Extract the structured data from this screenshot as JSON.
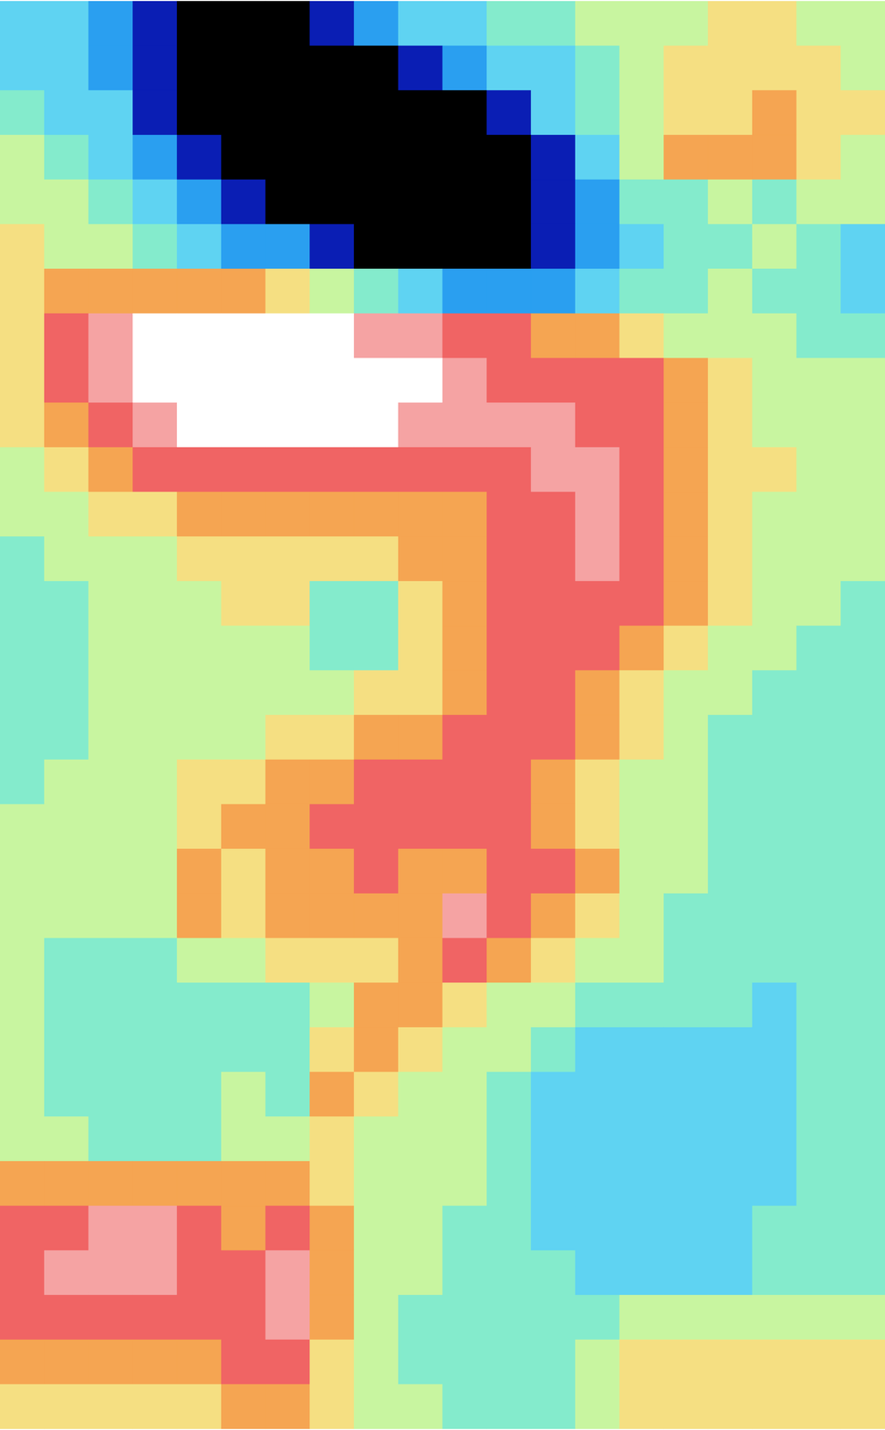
{
  "chart_data": {
    "type": "heatmap",
    "tick_labels": false,
    "zlim": [
      0,
      10
    ],
    "colors": [
      "#000000",
      "#0a1eb4",
      "#2a9ff0",
      "#5fd3f2",
      "#84ebcc",
      "#c8f5a0",
      "#f5df82",
      "#f5a552",
      "#f06464",
      "#f5a3a3",
      "#ffffff"
    ],
    "cells": [
      [
        3,
        3,
        2,
        1,
        0,
        0,
        0,
        1,
        2,
        3,
        3,
        4,
        4,
        5,
        5,
        5,
        6,
        6,
        5,
        5
      ],
      [
        3,
        3,
        2,
        1,
        0,
        0,
        0,
        0,
        0,
        1,
        2,
        3,
        3,
        4,
        5,
        6,
        6,
        6,
        6,
        5
      ],
      [
        4,
        3,
        3,
        1,
        0,
        0,
        0,
        0,
        0,
        0,
        0,
        1,
        3,
        4,
        5,
        6,
        6,
        7,
        6,
        6
      ],
      [
        5,
        4,
        3,
        2,
        1,
        0,
        0,
        0,
        0,
        0,
        0,
        0,
        1,
        3,
        5,
        7,
        7,
        7,
        6,
        5
      ],
      [
        5,
        5,
        4,
        3,
        2,
        1,
        0,
        0,
        0,
        0,
        0,
        0,
        1,
        2,
        4,
        4,
        5,
        4,
        5,
        5
      ],
      [
        6,
        5,
        5,
        4,
        3,
        2,
        2,
        1,
        0,
        0,
        0,
        0,
        1,
        2,
        3,
        4,
        4,
        5,
        4,
        3
      ],
      [
        6,
        7,
        7,
        7,
        7,
        7,
        6,
        5,
        4,
        3,
        2,
        2,
        2,
        3,
        4,
        4,
        5,
        4,
        4,
        3
      ],
      [
        6,
        8,
        9,
        10,
        10,
        10,
        10,
        10,
        9,
        9,
        8,
        8,
        7,
        7,
        6,
        5,
        5,
        5,
        4,
        4
      ],
      [
        6,
        8,
        9,
        10,
        10,
        10,
        10,
        10,
        10,
        10,
        9,
        8,
        8,
        8,
        8,
        7,
        6,
        5,
        5,
        5
      ],
      [
        6,
        7,
        8,
        9,
        10,
        10,
        10,
        10,
        10,
        9,
        9,
        9,
        9,
        8,
        8,
        7,
        6,
        5,
        5,
        5
      ],
      [
        5,
        6,
        7,
        8,
        8,
        8,
        8,
        8,
        8,
        8,
        8,
        8,
        9,
        9,
        8,
        7,
        6,
        6,
        5,
        5
      ],
      [
        5,
        5,
        6,
        6,
        7,
        7,
        7,
        7,
        7,
        7,
        7,
        8,
        8,
        9,
        8,
        7,
        6,
        5,
        5,
        5
      ],
      [
        4,
        5,
        5,
        5,
        6,
        6,
        6,
        6,
        6,
        7,
        7,
        8,
        8,
        9,
        8,
        7,
        6,
        5,
        5,
        5
      ],
      [
        4,
        4,
        5,
        5,
        5,
        6,
        6,
        4,
        4,
        6,
        7,
        8,
        8,
        8,
        8,
        7,
        6,
        5,
        5,
        4
      ],
      [
        4,
        4,
        5,
        5,
        5,
        5,
        5,
        4,
        4,
        6,
        7,
        8,
        8,
        8,
        7,
        6,
        5,
        5,
        4,
        4
      ],
      [
        4,
        4,
        5,
        5,
        5,
        5,
        5,
        5,
        6,
        6,
        7,
        8,
        8,
        7,
        6,
        5,
        5,
        4,
        4,
        4
      ],
      [
        4,
        4,
        5,
        5,
        5,
        5,
        6,
        6,
        7,
        7,
        8,
        8,
        8,
        7,
        6,
        5,
        4,
        4,
        4,
        4
      ],
      [
        4,
        5,
        5,
        5,
        6,
        6,
        7,
        7,
        8,
        8,
        8,
        8,
        7,
        6,
        5,
        5,
        4,
        4,
        4,
        4
      ],
      [
        5,
        5,
        5,
        5,
        6,
        7,
        7,
        8,
        8,
        8,
        8,
        8,
        7,
        6,
        5,
        5,
        4,
        4,
        4,
        4
      ],
      [
        5,
        5,
        5,
        5,
        7,
        6,
        7,
        7,
        8,
        7,
        7,
        8,
        8,
        7,
        5,
        5,
        4,
        4,
        4,
        4
      ],
      [
        5,
        5,
        5,
        5,
        7,
        6,
        7,
        7,
        7,
        7,
        9,
        8,
        7,
        6,
        5,
        4,
        4,
        4,
        4,
        4
      ],
      [
        5,
        4,
        4,
        4,
        5,
        5,
        6,
        6,
        6,
        7,
        8,
        7,
        6,
        5,
        5,
        4,
        4,
        4,
        4,
        4
      ],
      [
        5,
        4,
        4,
        4,
        4,
        4,
        4,
        5,
        7,
        7,
        6,
        5,
        5,
        4,
        4,
        4,
        4,
        3,
        4,
        4
      ],
      [
        5,
        4,
        4,
        4,
        4,
        4,
        4,
        6,
        7,
        6,
        5,
        5,
        4,
        3,
        3,
        3,
        3,
        3,
        4,
        4
      ],
      [
        5,
        4,
        4,
        4,
        4,
        5,
        4,
        7,
        6,
        5,
        5,
        4,
        3,
        3,
        3,
        3,
        3,
        3,
        4,
        4
      ],
      [
        5,
        5,
        4,
        4,
        4,
        5,
        5,
        6,
        5,
        5,
        5,
        4,
        3,
        3,
        3,
        3,
        3,
        3,
        4,
        4
      ],
      [
        7,
        7,
        7,
        7,
        7,
        7,
        7,
        6,
        5,
        5,
        5,
        4,
        3,
        3,
        3,
        3,
        3,
        3,
        4,
        4
      ],
      [
        8,
        8,
        9,
        9,
        8,
        7,
        8,
        7,
        5,
        5,
        4,
        4,
        3,
        3,
        3,
        3,
        3,
        4,
        4,
        4
      ],
      [
        8,
        9,
        9,
        9,
        8,
        8,
        9,
        7,
        5,
        5,
        4,
        4,
        4,
        3,
        3,
        3,
        3,
        4,
        4,
        4
      ],
      [
        8,
        8,
        8,
        8,
        8,
        8,
        9,
        7,
        5,
        4,
        4,
        4,
        4,
        4,
        5,
        5,
        5,
        5,
        5,
        5
      ],
      [
        7,
        7,
        7,
        7,
        7,
        8,
        8,
        6,
        5,
        4,
        4,
        4,
        4,
        5,
        6,
        6,
        6,
        6,
        6,
        6
      ],
      [
        6,
        6,
        6,
        6,
        6,
        7,
        7,
        6,
        5,
        5,
        4,
        4,
        4,
        5,
        6,
        6,
        6,
        6,
        6,
        6
      ]
    ]
  }
}
